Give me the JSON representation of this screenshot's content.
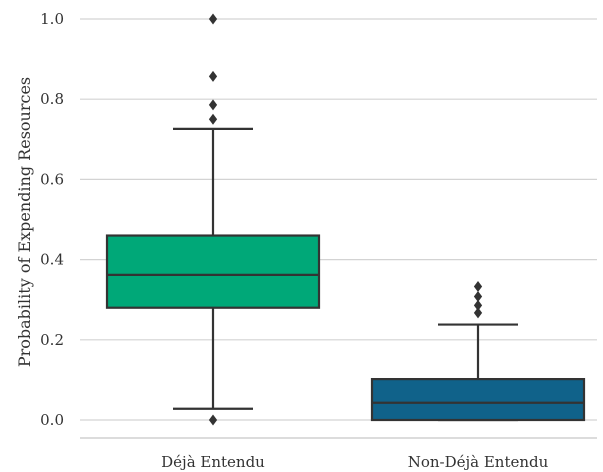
{
  "chart_data": {
    "type": "box",
    "title": "",
    "xlabel": "",
    "ylabel": "Probability of Expending Resources",
    "ylim": [
      -0.05,
      1.04
    ],
    "yticks": [
      0.0,
      0.2,
      0.4,
      0.6,
      0.8,
      1.0
    ],
    "ytick_labels": [
      "0.0",
      "0.2",
      "0.4",
      "0.6",
      "0.8",
      "1.0"
    ],
    "grid": "horizontal",
    "legend": "none",
    "categories": [
      "Déjà Entendu",
      "Non-Déjà Entendu"
    ],
    "boxes": [
      {
        "category": "Déjà Entendu",
        "color": "#00a878",
        "whisker_low": 0.028,
        "q1": 0.28,
        "median": 0.362,
        "q3": 0.46,
        "whisker_high": 0.726,
        "outliers": [
          0.0,
          0.75,
          0.786,
          0.857,
          1.0
        ]
      },
      {
        "category": "Non-Déjà Entendu",
        "color": "#10628a",
        "whisker_low": 0.0,
        "q1": 0.0,
        "median": 0.043,
        "q3": 0.102,
        "whisker_high": 0.238,
        "outliers": [
          0.267,
          0.286,
          0.308,
          0.333
        ]
      }
    ]
  }
}
